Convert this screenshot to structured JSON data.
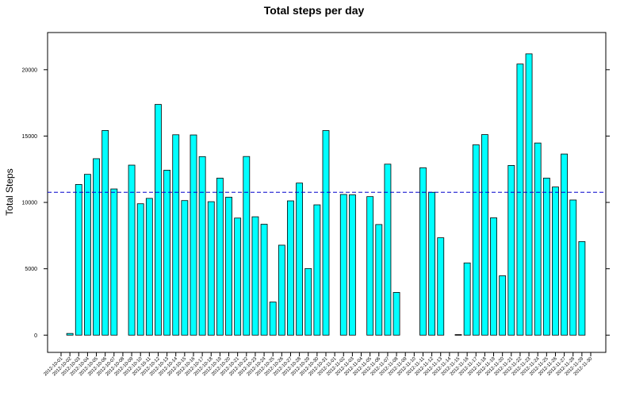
{
  "chart_data": {
    "type": "bar",
    "title": "Total steps per day",
    "xlabel": "",
    "ylabel": "Total Steps",
    "ylim": [
      -1300,
      22800
    ],
    "yticks": [
      0,
      5000,
      10000,
      15000,
      20000
    ],
    "reference_line": {
      "value": 10766,
      "style": "dashed",
      "color": "#0000cc"
    },
    "bar_color": "#00ffff",
    "bar_border": "#000000",
    "grid": false,
    "legend": "none",
    "categories": [
      "2012-10-01",
      "2012-10-02",
      "2012-10-03",
      "2012-10-04",
      "2012-10-05",
      "2012-10-06",
      "2012-10-07",
      "2012-10-08",
      "2012-10-09",
      "2012-10-10",
      "2012-10-11",
      "2012-10-12",
      "2012-10-13",
      "2012-10-14",
      "2012-10-15",
      "2012-10-16",
      "2012-10-17",
      "2012-10-18",
      "2012-10-19",
      "2012-10-20",
      "2012-10-21",
      "2012-10-22",
      "2012-10-23",
      "2012-10-24",
      "2012-10-25",
      "2012-10-26",
      "2012-10-27",
      "2012-10-28",
      "2012-10-29",
      "2012-10-30",
      "2012-10-31",
      "2012-11-01",
      "2012-11-02",
      "2012-11-03",
      "2012-11-04",
      "2012-11-05",
      "2012-11-06",
      "2012-11-07",
      "2012-11-08",
      "2012-11-09",
      "2012-11-10",
      "2012-11-11",
      "2012-11-12",
      "2012-11-13",
      "2012-11-14",
      "2012-11-15",
      "2012-11-16",
      "2012-11-17",
      "2012-11-18",
      "2012-11-19",
      "2012-11-20",
      "2012-11-21",
      "2012-11-22",
      "2012-11-23",
      "2012-11-24",
      "2012-11-25",
      "2012-11-26",
      "2012-11-27",
      "2012-11-28",
      "2012-11-29",
      "2012-11-30"
    ],
    "values": [
      null,
      126,
      11352,
      12116,
      13294,
      15420,
      11015,
      null,
      12811,
      9900,
      10304,
      17382,
      12426,
      15098,
      10139,
      15084,
      13452,
      10056,
      11829,
      10395,
      8821,
      13460,
      8918,
      8355,
      2492,
      6778,
      10119,
      11458,
      5018,
      9819,
      15414,
      null,
      10600,
      10571,
      null,
      10439,
      8334,
      12883,
      3219,
      null,
      null,
      12608,
      10765,
      7336,
      null,
      41,
      5441,
      14339,
      15110,
      8841,
      4472,
      12787,
      20427,
      21194,
      14478,
      11834,
      11162,
      13646,
      10183,
      7047,
      null
    ]
  }
}
